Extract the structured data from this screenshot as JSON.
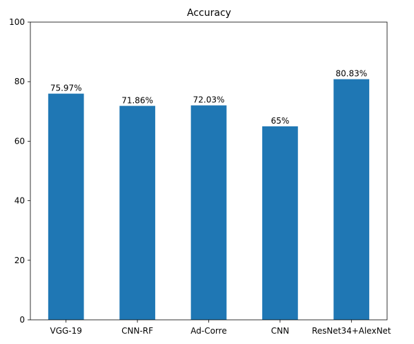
{
  "chart_data": {
    "type": "bar",
    "title": "Accuracy",
    "xlabel": "",
    "ylabel": "",
    "categories": [
      "VGG-19",
      "CNN-RF",
      "Ad-Corre",
      "CNN",
      "ResNet34+AlexNet"
    ],
    "values": [
      75.97,
      71.86,
      72.03,
      65,
      80.83
    ],
    "data_labels": [
      "75.97%",
      "71.86%",
      "72.03%",
      "65%",
      "80.83%"
    ],
    "ylim": [
      0,
      100
    ],
    "yticks": [
      0,
      20,
      40,
      60,
      80,
      100
    ],
    "grid": false,
    "legend": "none",
    "bar_color": "#1f77b4"
  }
}
